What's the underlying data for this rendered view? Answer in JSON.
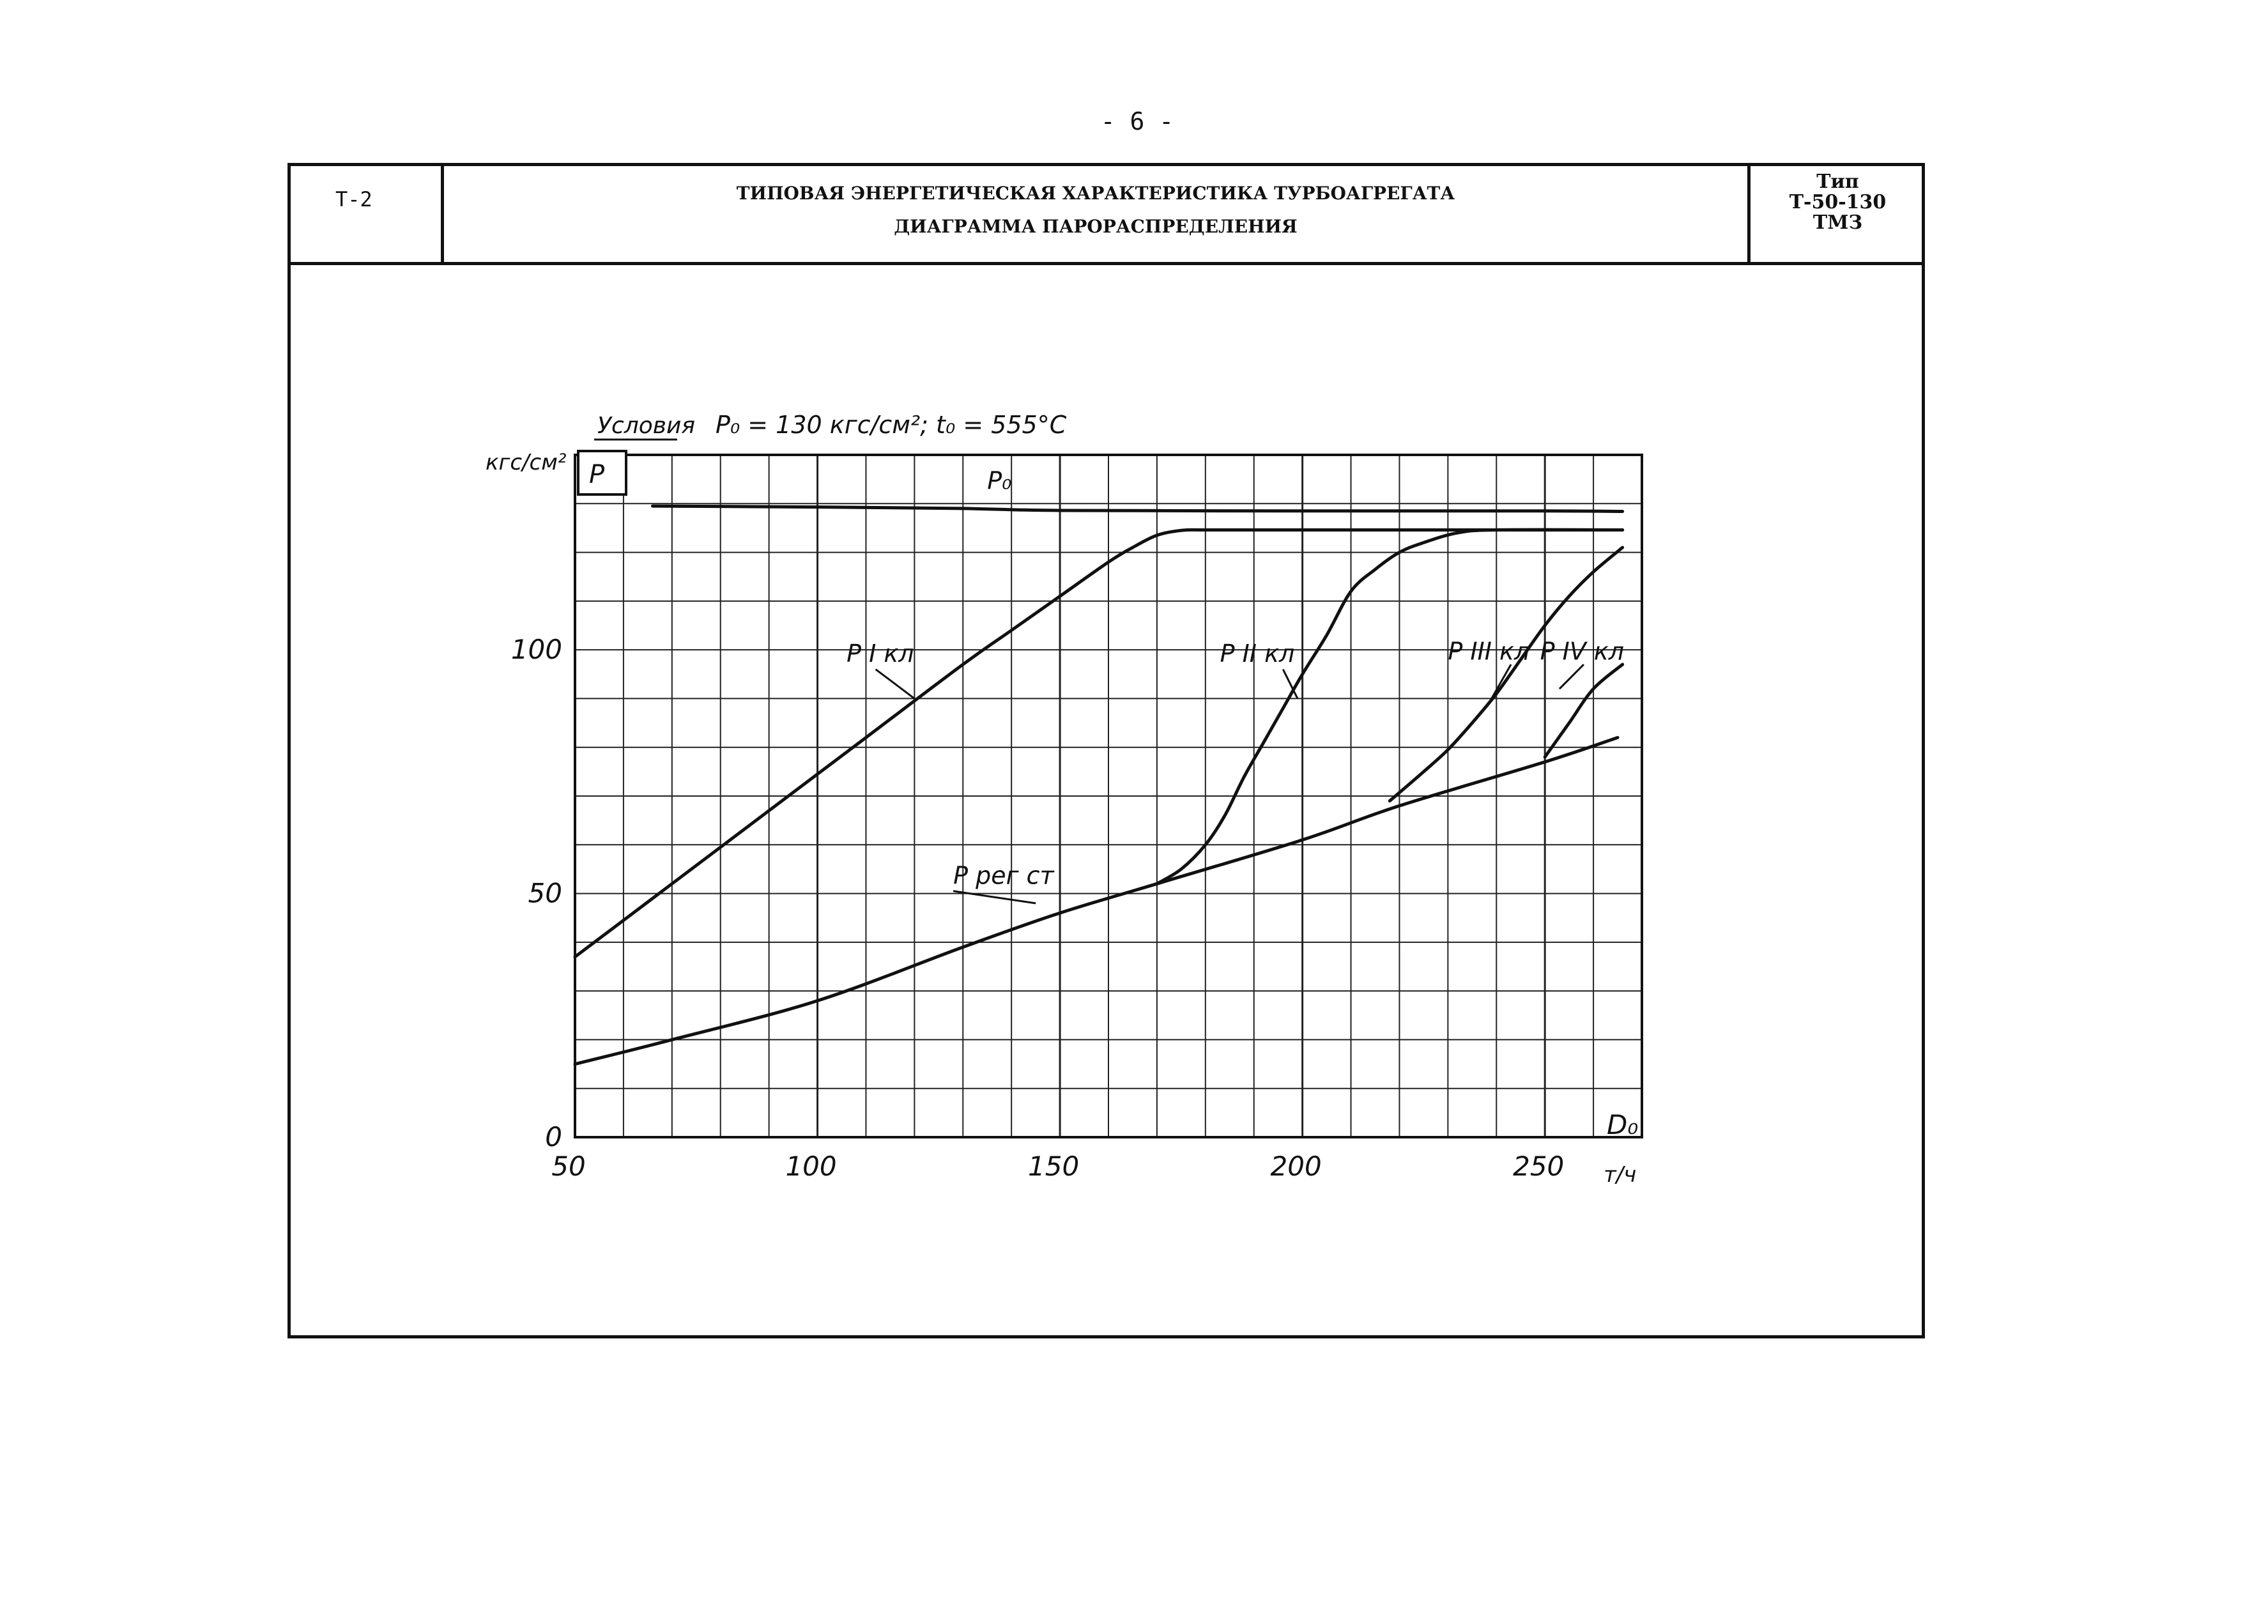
{
  "page_number": "- 6 -",
  "header": {
    "code": "Т-2",
    "title_line1": "ТИПОВАЯ ЭНЕРГЕТИЧЕСКАЯ ХАРАКТЕРИСТИКА ТУРБОАГРЕГАТА",
    "title_line2": "ДИАГРАММА ПАРОРАСПРЕДЕЛЕНИЯ",
    "type_label": "Тип",
    "type_model": "Т-50-130",
    "type_maker": "ТМЗ"
  },
  "chart_data": {
    "type": "line",
    "conditions_label": "Условия",
    "conditions_text": "P₀ = 130 кгс/см²; t₀ = 555°C",
    "y_unit": "кгс/см²",
    "y_symbol": "P",
    "x_symbol": "D₀",
    "x_unit": "т/ч",
    "xlim": [
      50,
      270
    ],
    "ylim": [
      0,
      140
    ],
    "x_ticks": [
      50,
      100,
      150,
      200,
      250
    ],
    "x_tick_labels": [
      "50",
      "100",
      "150",
      "200",
      "250"
    ],
    "y_ticks": [
      0,
      50,
      100
    ],
    "y_tick_labels": [
      "0",
      "50",
      "100"
    ],
    "grid": true,
    "series": [
      {
        "name": "P₀",
        "x": [
          66,
          100,
          130,
          150,
          200,
          250,
          266
        ],
        "y": [
          129.5,
          129.3,
          129.0,
          128.6,
          128.5,
          128.5,
          128.4
        ]
      },
      {
        "name": "P I кл",
        "x": [
          50,
          70,
          90,
          110,
          130,
          140,
          150,
          160,
          165,
          170,
          175,
          180,
          200,
          230,
          266
        ],
        "y": [
          37,
          52,
          67,
          82,
          97,
          104,
          111,
          118,
          121,
          123.5,
          124.5,
          124.6,
          124.6,
          124.6,
          124.6
        ]
      },
      {
        "name": "P II кл",
        "x": [
          170,
          175,
          180,
          184,
          188,
          192,
          196,
          200,
          205,
          210,
          215,
          220,
          225,
          232,
          240,
          266
        ],
        "y": [
          52,
          55,
          60,
          66,
          74,
          81,
          88,
          95,
          103,
          112,
          116.5,
          120,
          122,
          124,
          124.6,
          124.6
        ]
      },
      {
        "name": "P III кл",
        "x": [
          218,
          225,
          230,
          235,
          240,
          245,
          250,
          255,
          260,
          266
        ],
        "y": [
          69,
          75,
          79.5,
          85,
          91,
          98,
          105,
          111,
          116,
          121
        ]
      },
      {
        "name": "P IV кл",
        "x": [
          250,
          255,
          260,
          266
        ],
        "y": [
          78,
          85,
          92,
          97
        ]
      },
      {
        "name": "P рег ст",
        "x": [
          50,
          70,
          100,
          130,
          150,
          170,
          200,
          220,
          250,
          265
        ],
        "y": [
          15,
          20,
          28,
          39,
          46,
          52,
          61,
          68,
          77,
          82
        ]
      }
    ],
    "series_labels": [
      "P₀",
      "P I кл",
      "P II кл",
      "P III кл",
      "P IV кл",
      "P рег ст"
    ]
  }
}
